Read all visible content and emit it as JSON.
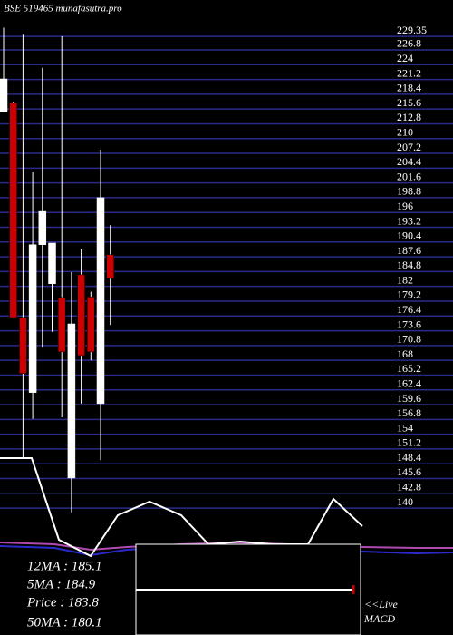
{
  "chart_data": {
    "type": "candlestick",
    "title": "BSE 519465 munafasutra.pro",
    "ylim": [
      134,
      236.25
    ],
    "yticks": [
      229.35,
      226.8,
      224,
      221.2,
      218.4,
      215.6,
      212.8,
      210,
      207.2,
      204.4,
      201.6,
      198.8,
      196,
      193.2,
      190.4,
      187.6,
      184.8,
      182,
      179.2,
      176.4,
      173.6,
      170.8,
      168,
      165.2,
      162.4,
      159.6,
      156.8,
      154,
      151.2,
      148.4,
      145.6,
      142.8,
      140
    ],
    "grid": true,
    "up_color": "#ffffff",
    "down_color": "#cc0000",
    "candles": [
      {
        "open": 215.1,
        "high": 231,
        "low": 215,
        "close": 221.3
      },
      {
        "open": 216.8,
        "high": 217,
        "low": 176,
        "close": 176.1
      },
      {
        "open": 176.1,
        "high": 229.7,
        "low": 149.5,
        "close": 165.5
      },
      {
        "open": 161.9,
        "high": 203.6,
        "low": 156.9,
        "close": 189.9
      },
      {
        "open": 189.9,
        "high": 223.4,
        "low": 170.4,
        "close": 196.2
      },
      {
        "open": 182.5,
        "high": 190.2,
        "low": 173.4,
        "close": 190.2
      },
      {
        "open": 179.9,
        "high": 229.4,
        "low": 157.2,
        "close": 169.6
      },
      {
        "open": 145.7,
        "high": 184.7,
        "low": 139.2,
        "close": 174.9
      },
      {
        "open": 184.2,
        "high": 189,
        "low": 159.8,
        "close": 168.9
      },
      {
        "open": 180,
        "high": 181,
        "low": 168,
        "close": 169.6
      },
      {
        "open": 159.8,
        "high": 207.9,
        "low": 149.1,
        "close": 198.8
      },
      {
        "open": 188,
        "high": 193.6,
        "low": 174.7,
        "close": 183.5
      }
    ],
    "info_lines": [
      "12MA : 185.1",
      "5MA : 184.9",
      "Price  : 183.8",
      "50MA : 180.1"
    ],
    "macd_label": [
      "<<Live",
      "MACD"
    ]
  }
}
